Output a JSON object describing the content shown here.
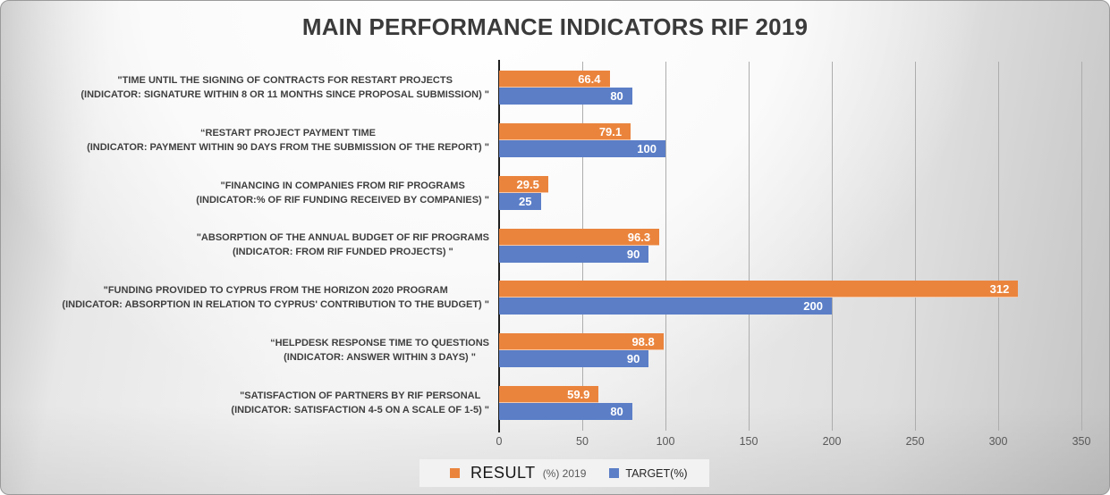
{
  "title": "MAIN PERFORMANCE INDICATORS RIF 2019",
  "legend": {
    "result_label": "RESULT",
    "result_sub": "(%) 2019",
    "target_label": "TARGET(%)"
  },
  "colors": {
    "result": "#EA843D",
    "target": "#5B7EC7",
    "axis": "#1F1F1F",
    "gridline": "#ADADAD",
    "label_text": "#3F3F3F",
    "tick_text": "#595959",
    "value_text": "#FFFFFF",
    "legend_bg": "#F2F2F2",
    "title_text": "#3B3B3B"
  },
  "chart_data": {
    "type": "bar",
    "orientation": "horizontal",
    "title": "MAIN PERFORMANCE INDICATORS RIF 2019",
    "categories": [
      {
        "line1": "\"TIME UNTIL THE SIGNING OF CONTRACTS FOR RESTART PROJECTS",
        "line2": "(INDICATOR: SIGNATURE WITHIN 8 OR 11 MONTHS SINCE PROPOSAL SUBMISSION) \""
      },
      {
        "line1": "“RESTART PROJECT PAYMENT TIME",
        "line2": "(INDICATOR: PAYMENT WITHIN 90 DAYS FROM THE SUBMISSION OF THE REPORT) \""
      },
      {
        "line1": "\"FINANCING IN COMPANIES FROM RIF PROGRAMS",
        "line2": "(INDICATOR:% OF RIF FUNDING RECEIVED BY COMPANIES) \""
      },
      {
        "line1": "\"ABSORPTION OF THE ANNUAL BUDGET OF RIF PROGRAMS",
        "line2": "(INDICATOR: FROM RIF FUNDED PROJECTS) \""
      },
      {
        "line1": "\"FUNDING PROVIDED TO CYPRUS FROM THE HORIZON 2020 PROGRAM",
        "line2": "(INDICATOR: ABSORPTION IN RELATION TO CYPRUS' CONTRIBUTION TO THE BUDGET) \""
      },
      {
        "line1": "“HELPDESK RESPONSE TIME TO QUESTIONS",
        "line2": "(INDICATOR: ANSWER WITHIN 3 DAYS) \""
      },
      {
        "line1": "\"SATISFACTION OF PARTNERS BY RIF PERSONAL",
        "line2": "(INDICATOR: SATISFACTION 4-5 ON A SCALE OF 1-5) \""
      }
    ],
    "series": [
      {
        "name": "RESULT (%) 2019",
        "color": "#EA843D",
        "values": [
          66.4,
          79.1,
          29.5,
          96.3,
          312,
          98.8,
          59.9
        ]
      },
      {
        "name": "TARGET(%)",
        "color": "#5B7EC7",
        "values": [
          80,
          100,
          25,
          90,
          200,
          90,
          80
        ]
      }
    ],
    "xlim": [
      0,
      350
    ],
    "xticks": [
      0,
      50,
      100,
      150,
      200,
      250,
      300,
      350
    ],
    "grid": true,
    "legend_position": "bottom",
    "value_labels": "inside-end"
  }
}
